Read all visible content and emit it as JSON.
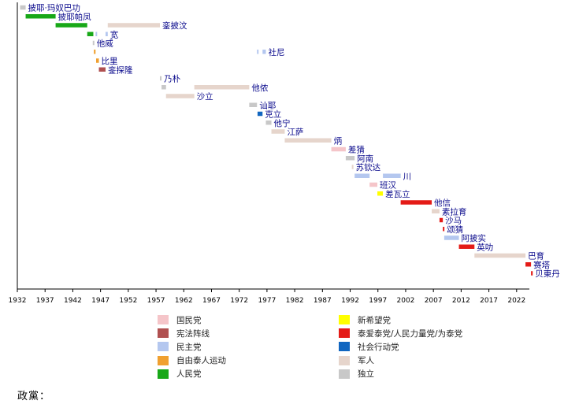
{
  "chart_data": {
    "type": "bar",
    "x_axis": {
      "ticks": [
        1932,
        1937,
        1942,
        1947,
        1952,
        1957,
        1962,
        1967,
        1972,
        1977,
        1982,
        1987,
        1992,
        1997,
        2002,
        2007,
        2012,
        2017,
        2022
      ],
      "xlim": [
        1932,
        2024.3
      ]
    },
    "parties": {
      "nationalist": {
        "label": "国民党",
        "color": "#f5c5c9"
      },
      "seri_manangkhasila": {
        "label": "宪法阵线",
        "color": "#b05050"
      },
      "democrat": {
        "label": "民主党",
        "color": "#b4c7ef"
      },
      "free_thai": {
        "label": "自由泰人运动",
        "color": "#f0a030"
      },
      "people": {
        "label": "人民党",
        "color": "#18a818"
      },
      "new_aspiration": {
        "label": "新希望党",
        "color": "#ffff00"
      },
      "thai_rak_thai": {
        "label": "泰爱泰党/人民力量党/为泰党",
        "color": "#e41b17"
      },
      "social_action": {
        "label": "社会行动党",
        "color": "#1166c0"
      },
      "military": {
        "label": "军人",
        "color": "#e6d5cc"
      },
      "independent": {
        "label": "独立",
        "color": "#c8c8c8"
      }
    },
    "legend_order": [
      [
        "nationalist",
        "new_aspiration"
      ],
      [
        "seri_manangkhasila",
        "thai_rak_thai"
      ],
      [
        "democrat",
        "social_action"
      ],
      [
        "free_thai",
        "military"
      ],
      [
        "people",
        "independent"
      ]
    ],
    "rows": [
      {
        "name": "披耶·玛奴巴功",
        "terms": [
          {
            "start": 1932.5,
            "end": 1933.5,
            "party": "independent"
          }
        ]
      },
      {
        "name": "披耶帕凤",
        "terms": [
          {
            "start": 1933.5,
            "end": 1938.9,
            "party": "people"
          }
        ]
      },
      {
        "name": "銮披汶",
        "terms": [
          {
            "start": 1938.9,
            "end": 1944.6,
            "party": "people"
          },
          {
            "start": 1948.3,
            "end": 1957.7,
            "party": "military"
          }
        ]
      },
      {
        "name": "宽",
        "terms": [
          {
            "start": 1944.6,
            "end": 1945.7,
            "party": "people"
          },
          {
            "start": 1946.1,
            "end": 1946.2,
            "party": "democrat"
          },
          {
            "start": 1947.9,
            "end": 1948.3,
            "party": "democrat"
          }
        ]
      },
      {
        "name": "他威",
        "terms": [
          {
            "start": 1945.6,
            "end": 1945.8,
            "party": "independent"
          }
        ]
      },
      {
        "name": "社尼",
        "terms": [
          {
            "start": 1945.8,
            "end": 1946.1,
            "party": "free_thai"
          },
          {
            "start": 1975.2,
            "end": 1975.3,
            "party": "democrat"
          },
          {
            "start": 1976.2,
            "end": 1976.8,
            "party": "democrat"
          }
        ]
      },
      {
        "name": "比里",
        "terms": [
          {
            "start": 1946.2,
            "end": 1946.7,
            "party": "free_thai"
          }
        ]
      },
      {
        "name": "銮探隆",
        "terms": [
          {
            "start": 1946.7,
            "end": 1947.9,
            "party": "seri_manangkhasila"
          }
        ]
      },
      {
        "name": "乃朴",
        "terms": [
          {
            "start": 1957.7,
            "end": 1958.0,
            "party": "independent"
          }
        ]
      },
      {
        "name": "他侬",
        "terms": [
          {
            "start": 1958.0,
            "end": 1958.8,
            "party": "independent"
          },
          {
            "start": 1963.9,
            "end": 1973.8,
            "party": "military"
          }
        ]
      },
      {
        "name": "沙立",
        "terms": [
          {
            "start": 1958.8,
            "end": 1963.9,
            "party": "military"
          }
        ]
      },
      {
        "name": "讪耶",
        "terms": [
          {
            "start": 1973.8,
            "end": 1975.2,
            "party": "independent"
          }
        ]
      },
      {
        "name": "克立",
        "terms": [
          {
            "start": 1975.3,
            "end": 1976.2,
            "party": "social_action"
          }
        ]
      },
      {
        "name": "他宁",
        "terms": [
          {
            "start": 1976.8,
            "end": 1977.8,
            "party": "independent"
          }
        ]
      },
      {
        "name": "江萨",
        "terms": [
          {
            "start": 1977.8,
            "end": 1980.2,
            "party": "military"
          }
        ]
      },
      {
        "name": "炳",
        "terms": [
          {
            "start": 1980.2,
            "end": 1988.6,
            "party": "military"
          }
        ]
      },
      {
        "name": "差猜",
        "terms": [
          {
            "start": 1988.6,
            "end": 1991.2,
            "party": "nationalist"
          }
        ]
      },
      {
        "name": "阿南",
        "terms": [
          {
            "start": 1991.2,
            "end": 1992.8,
            "party": "independent"
          }
        ]
      },
      {
        "name": "苏钦达",
        "terms": [
          {
            "start": 1992.3,
            "end": 1992.4,
            "party": "military"
          }
        ]
      },
      {
        "name": "川",
        "terms": [
          {
            "start": 1992.8,
            "end": 1995.5,
            "party": "democrat"
          },
          {
            "start": 1997.9,
            "end": 2001.1,
            "party": "democrat"
          }
        ]
      },
      {
        "name": "班汉",
        "terms": [
          {
            "start": 1995.5,
            "end": 1996.9,
            "party": "nationalist"
          }
        ]
      },
      {
        "name": "差瓦立",
        "terms": [
          {
            "start": 1996.9,
            "end": 1997.9,
            "party": "new_aspiration"
          }
        ]
      },
      {
        "name": "他信",
        "terms": [
          {
            "start": 2001.1,
            "end": 2006.7,
            "party": "thai_rak_thai"
          }
        ]
      },
      {
        "name": "素拉育",
        "terms": [
          {
            "start": 2006.7,
            "end": 2008.1,
            "party": "military"
          }
        ]
      },
      {
        "name": "沙马",
        "terms": [
          {
            "start": 2008.1,
            "end": 2008.7,
            "party": "thai_rak_thai"
          }
        ]
      },
      {
        "name": "颂猜",
        "terms": [
          {
            "start": 2008.7,
            "end": 2008.95,
            "party": "thai_rak_thai"
          }
        ]
      },
      {
        "name": "阿披实",
        "terms": [
          {
            "start": 2008.95,
            "end": 2011.6,
            "party": "democrat"
          }
        ]
      },
      {
        "name": "英叻",
        "terms": [
          {
            "start": 2011.6,
            "end": 2014.4,
            "party": "thai_rak_thai"
          }
        ]
      },
      {
        "name": "巴育",
        "terms": [
          {
            "start": 2014.4,
            "end": 2023.6,
            "party": "military"
          }
        ]
      },
      {
        "name": "赛塔",
        "terms": [
          {
            "start": 2023.6,
            "end": 2024.6,
            "party": "thai_rak_thai"
          }
        ]
      },
      {
        "name": "贝東丹",
        "terms": [
          {
            "start": 2024.6,
            "end": 2024.9,
            "party": "thai_rak_thai"
          }
        ]
      }
    ]
  },
  "footer": {
    "label": "政黨："
  }
}
